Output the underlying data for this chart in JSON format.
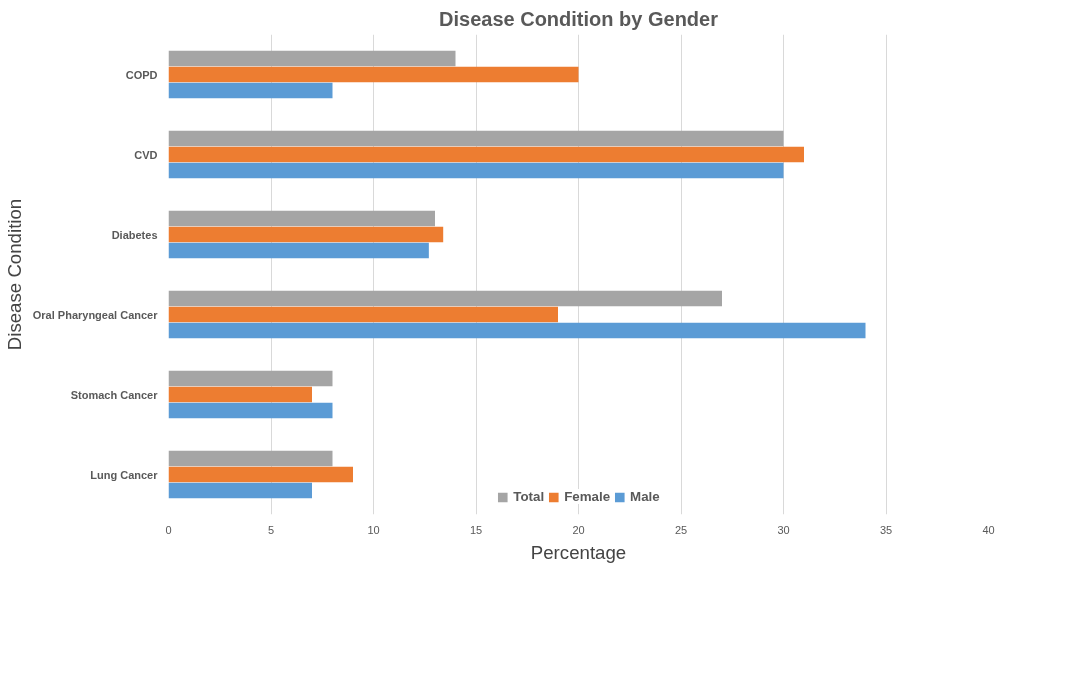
{
  "chart_data": {
    "type": "bar",
    "orientation": "horizontal",
    "title": "Disease Condition by Gender",
    "xlabel": "Percentage",
    "ylabel": "Disease Condition",
    "categories": [
      "COPD",
      "CVD",
      "Diabetes",
      "Oral Pharyngeal Cancer",
      "Stomach Cancer",
      "Lung Cancer"
    ],
    "series": [
      {
        "name": "Total",
        "color": "#a5a5a5",
        "values": [
          14,
          30,
          13,
          27,
          8,
          8
        ]
      },
      {
        "name": "Female",
        "color": "#ed7d31",
        "values": [
          20,
          31,
          13.4,
          19,
          7,
          9
        ]
      },
      {
        "name": "Male",
        "color": "#5b9bd5",
        "values": [
          8,
          30,
          12.7,
          34,
          8,
          7
        ]
      }
    ],
    "xlim": [
      0,
      40
    ],
    "xticks": [
      0,
      5,
      10,
      15,
      20,
      25,
      30,
      35,
      40
    ],
    "grid": "x",
    "legend": "bottom"
  }
}
